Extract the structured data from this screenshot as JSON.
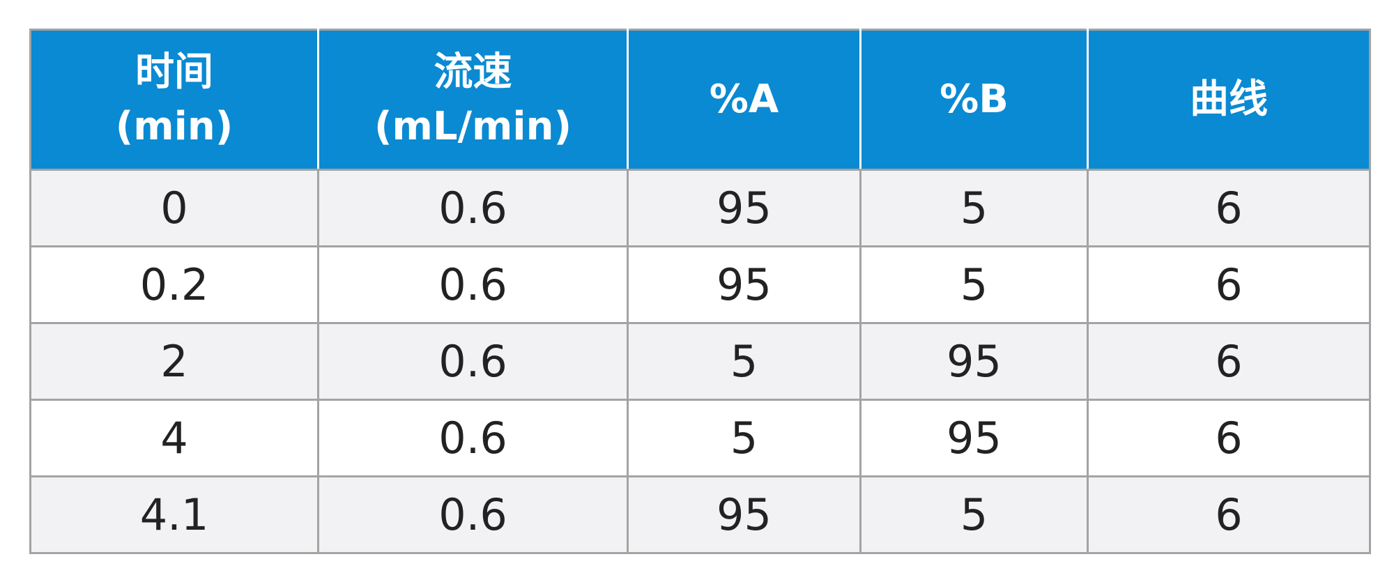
{
  "table": {
    "header": [
      [
        "时间",
        "(min)"
      ],
      [
        "流速",
        "(mL/min)"
      ],
      [
        "%A"
      ],
      [
        "%B"
      ],
      [
        "曲线"
      ]
    ],
    "rows": [
      [
        "0",
        "0.6",
        "95",
        "5",
        "6"
      ],
      [
        "0.2",
        "0.6",
        "95",
        "5",
        "6"
      ],
      [
        "2",
        "0.6",
        "5",
        "95",
        "6"
      ],
      [
        "4",
        "0.6",
        "5",
        "95",
        "6"
      ],
      [
        "4.1",
        "0.6",
        "95",
        "5",
        "6"
      ]
    ]
  }
}
